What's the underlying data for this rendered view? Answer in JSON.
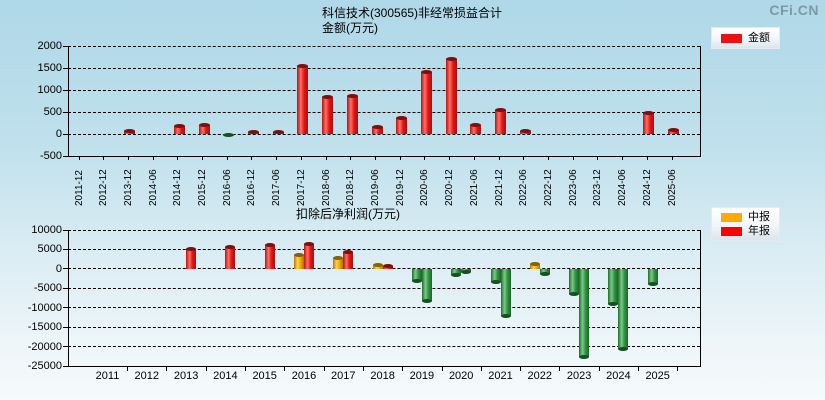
{
  "watermark": "CFi.CN",
  "chart_data": [
    {
      "type": "bar",
      "title": "科信技术(300565)非经常损益合计",
      "subtitle": "金额(万元)",
      "legend": [
        {
          "label": "金额",
          "color": "#ee1111"
        }
      ],
      "legend_position": "top-right",
      "grid": "dashed",
      "ylim": [
        -500,
        2000
      ],
      "yticks": [
        2000,
        1500,
        1000,
        500,
        0,
        -500
      ],
      "categories": [
        "2011-12",
        "2012-12",
        "2013-12",
        "2014-06",
        "2014-12",
        "2015-12",
        "2016-06",
        "2016-12",
        "2017-06",
        "2017-12",
        "2018-06",
        "2018-12",
        "2019-06",
        "2019-12",
        "2020-06",
        "2020-12",
        "2021-06",
        "2021-12",
        "2022-06",
        "2022-12",
        "2023-06",
        "2023-12",
        "2024-06",
        "2024-12",
        "2025-06"
      ],
      "series": [
        {
          "name": "金额",
          "color_positive": "red",
          "color_negative": "green",
          "values": [
            null,
            null,
            75,
            null,
            175,
            200,
            -30,
            40,
            50,
            1550,
            850,
            870,
            160,
            370,
            1400,
            1700,
            200,
            550,
            60,
            null,
            null,
            null,
            null,
            470,
            100
          ]
        }
      ]
    },
    {
      "type": "bar",
      "title": "扣除后净利润(万元)",
      "legend": [
        {
          "label": "中报",
          "color": "#ffaa00"
        },
        {
          "label": "年报",
          "color": "#ff0000"
        }
      ],
      "legend_position": "top-right",
      "grid": "dashed",
      "ylim": [
        -25000,
        10000
      ],
      "yticks": [
        10000,
        5000,
        0,
        -5000,
        -10000,
        -15000,
        -20000,
        -25000
      ],
      "categories": [
        "2011",
        "2012",
        "2013",
        "2014",
        "2015",
        "2016",
        "2017",
        "2018",
        "2019",
        "2020",
        "2021",
        "2022",
        "2023",
        "2024",
        "2025"
      ],
      "series": [
        {
          "name": "中报",
          "color_positive": "orange",
          "color_negative": "green",
          "values": [
            null,
            null,
            null,
            null,
            null,
            3500,
            2700,
            1100,
            -3200,
            -1600,
            -3400,
            1200,
            -6400,
            -9000,
            -3900
          ]
        },
        {
          "name": "年报",
          "color_positive": "red",
          "color_negative": "green",
          "values": [
            null,
            null,
            5000,
            5600,
            6200,
            6300,
            4300,
            800,
            -8400,
            -800,
            -12200,
            -1300,
            -22800,
            -20700,
            null
          ]
        }
      ]
    }
  ]
}
